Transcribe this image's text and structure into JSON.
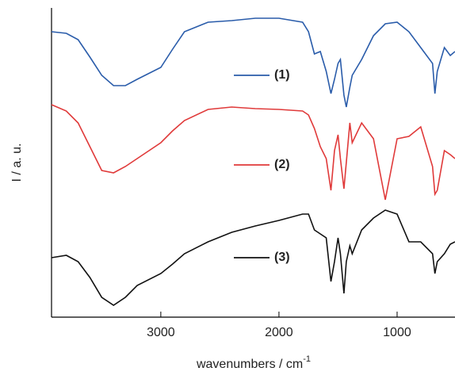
{
  "chart_data": {
    "type": "line",
    "x_label": "wavenumbers / cm",
    "x_label_sup": "-1",
    "y_label": "I / a. u.",
    "xlim": [
      3925,
      510
    ],
    "xticks": [
      3000,
      2000,
      1000
    ],
    "ylim": [
      0,
      390
    ],
    "x": [
      3925,
      3800,
      3700,
      3600,
      3500,
      3400,
      3300,
      3200,
      3000,
      2900,
      2800,
      2600,
      2400,
      2200,
      2000,
      1800,
      1750,
      1700,
      1650,
      1600,
      1560,
      1530,
      1500,
      1480,
      1450,
      1430,
      1400,
      1380,
      1300,
      1200,
      1100,
      1000,
      900,
      800,
      700,
      680,
      660,
      600,
      550,
      510
    ],
    "series": [
      {
        "name": "(1)",
        "color": "#2a5caa",
        "values": [
          360,
          358,
          350,
          328,
          305,
          292,
          292,
          300,
          315,
          338,
          360,
          372,
          374,
          377,
          377,
          372,
          360,
          332,
          335,
          310,
          282,
          300,
          320,
          325,
          280,
          265,
          290,
          305,
          325,
          355,
          370,
          372,
          360,
          340,
          320,
          282,
          310,
          340,
          330,
          335
        ]
      },
      {
        "name": "(2)",
        "color": "#e03a3a",
        "values": [
          268,
          260,
          245,
          215,
          185,
          182,
          190,
          200,
          220,
          235,
          248,
          262,
          265,
          263,
          262,
          260,
          255,
          238,
          215,
          200,
          160,
          210,
          230,
          200,
          162,
          195,
          245,
          220,
          245,
          225,
          148,
          225,
          228,
          240,
          190,
          155,
          160,
          210,
          205,
          200
        ]
      },
      {
        "name": "(3)",
        "color": "#111111",
        "values": [
          75,
          78,
          70,
          50,
          25,
          15,
          25,
          40,
          55,
          67,
          80,
          95,
          107,
          115,
          122,
          130,
          130,
          110,
          105,
          100,
          45,
          70,
          100,
          80,
          30,
          70,
          90,
          80,
          110,
          125,
          135,
          130,
          95,
          95,
          80,
          55,
          70,
          80,
          92,
          95
        ]
      }
    ]
  }
}
